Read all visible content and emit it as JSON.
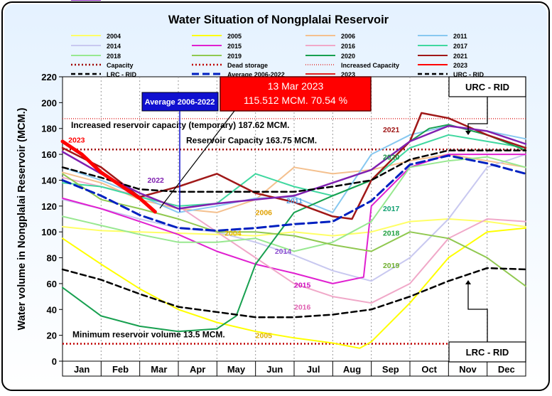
{
  "chart_data": {
    "type": "line",
    "title": "Water Situation of Nongplalai Reservoir",
    "ylabel": "Water volume in Nongplalai Reservoir (MCM.)",
    "xlabel": "",
    "ylim": [
      0,
      220
    ],
    "yticks": [
      0,
      20,
      40,
      60,
      80,
      100,
      120,
      140,
      160,
      180,
      200,
      220
    ],
    "months": [
      "Jan",
      "Feb",
      "Mar",
      "Apr",
      "May",
      "Jun",
      "Jul",
      "Aug",
      "Sep",
      "Oct",
      "Nov",
      "Dec"
    ],
    "grid": "vertical dotted by month",
    "legend_placement": "top",
    "legend": [
      {
        "name": "2004",
        "color": "#ffff66",
        "dash": "solid"
      },
      {
        "name": "2005",
        "color": "#ffff00",
        "dash": "solid"
      },
      {
        "name": "2006",
        "color": "#f4c08e",
        "dash": "solid"
      },
      {
        "name": "2011",
        "color": "#87c8f0",
        "dash": "solid"
      },
      {
        "name": "2014",
        "color": "#c8c8f0",
        "dash": "solid"
      },
      {
        "name": "2015",
        "color": "#e020d0",
        "dash": "solid"
      },
      {
        "name": "2016",
        "color": "#f0a8c8",
        "dash": "solid"
      },
      {
        "name": "2017",
        "color": "#40d8a0",
        "dash": "solid"
      },
      {
        "name": "2018",
        "color": "#98e890",
        "dash": "solid"
      },
      {
        "name": "2019",
        "color": "#90c850",
        "dash": "solid"
      },
      {
        "name": "2020",
        "color": "#18a050",
        "dash": "solid"
      },
      {
        "name": "2021",
        "color": "#a01818",
        "dash": "solid"
      },
      {
        "name": "Capacity",
        "color": "#a00000",
        "dash": "dot"
      },
      {
        "name": "Dead storage",
        "color": "#c00000",
        "dash": "dot"
      },
      {
        "name": "Increased Capacity",
        "color": "#e03030",
        "dash": "finedot"
      },
      {
        "name": "2023",
        "color": "#ff0000",
        "dash": "solid"
      },
      {
        "name": "LRC - RID",
        "color": "#000000",
        "dash": "dash"
      },
      {
        "name": "Average 2006-2022",
        "color": "#0020c0",
        "dash": "longdash"
      },
      {
        "name": "2023",
        "color": "#e02020",
        "dash": "solid"
      },
      {
        "name": "URC - RID",
        "color": "#000000",
        "dash": "dash"
      },
      {
        "name": "2023",
        "color": "#8020b0",
        "dash": "solid"
      }
    ],
    "reference_lines": [
      {
        "label": "Increased reservoir capacity (temporary) 187.62 MCM.",
        "value": 187.62,
        "color": "#e03030"
      },
      {
        "label": "Reservoir Capacity 163.75 MCM.",
        "value": 163.75,
        "color": "#a00000"
      },
      {
        "label": "Minimum reservoir volume 13.5 MCM.",
        "value": 13.5,
        "color": "#c00000"
      }
    ],
    "series": [
      {
        "name": "2004",
        "color": "#ffff66",
        "width": 2,
        "x": [
          0,
          1,
          2,
          3,
          4,
          5,
          6,
          7,
          8,
          9,
          10,
          11,
          12
        ],
        "y": [
          104,
          101,
          100,
          99,
          98,
          97,
          100,
          97,
          100,
          108,
          110,
          108,
          104
        ],
        "label": "2004",
        "lx": 4.2,
        "ly": 97,
        "lc": "#e0b000"
      },
      {
        "name": "2005",
        "color": "#ffff00",
        "width": 2,
        "x": [
          0,
          1,
          2,
          3,
          4,
          5,
          6,
          7,
          7.7,
          8,
          9,
          10,
          11,
          12
        ],
        "y": [
          95,
          75,
          56,
          40,
          30,
          23,
          18,
          14,
          10,
          15,
          45,
          80,
          100,
          103
        ],
        "label": "2005",
        "lx": 5.0,
        "ly": 18,
        "lc": "#e0b000"
      },
      {
        "name": "2006",
        "color": "#f4c08e",
        "width": 2,
        "x": [
          0,
          1,
          2,
          3,
          4,
          5,
          6,
          7,
          8,
          9,
          10,
          11,
          12
        ],
        "y": [
          146,
          138,
          125,
          118,
          115,
          125,
          150,
          145,
          148,
          155,
          160,
          155,
          150
        ],
        "label": "2006",
        "lx": 5.0,
        "ly": 113,
        "lc": "#e0a000"
      },
      {
        "name": "2011",
        "color": "#87c8f0",
        "width": 2,
        "x": [
          0,
          1,
          2,
          3,
          4,
          5,
          6,
          7,
          8,
          9,
          10,
          11,
          12
        ],
        "y": [
          150,
          140,
          128,
          115,
          120,
          126,
          127,
          115,
          160,
          175,
          182,
          178,
          172
        ],
        "label": "2011",
        "lx": 5.8,
        "ly": 122,
        "lc": "#50a0e0"
      },
      {
        "name": "2014",
        "color": "#c8c8f0",
        "width": 2,
        "x": [
          0,
          1,
          2,
          3,
          4,
          5,
          6,
          7,
          8,
          9,
          10,
          11,
          12
        ],
        "y": [
          125,
          118,
          110,
          103,
          100,
          92,
          82,
          70,
          62,
          80,
          110,
          150,
          160
        ],
        "label": "2014",
        "lx": 5.5,
        "ly": 83,
        "lc": "#9050d0"
      },
      {
        "name": "2015",
        "color": "#e020d0",
        "width": 2,
        "x": [
          0,
          1,
          2,
          3,
          4,
          5,
          6,
          7,
          7.8,
          8,
          9,
          10,
          11,
          12
        ],
        "y": [
          126,
          118,
          108,
          98,
          85,
          75,
          68,
          60,
          65,
          120,
          150,
          160,
          160,
          160
        ],
        "label": "2015",
        "lx": 6.0,
        "ly": 57,
        "lc": "#d010c0"
      },
      {
        "name": "2016",
        "color": "#f0a8c8",
        "width": 2,
        "x": [
          0,
          1,
          2,
          3,
          4,
          5,
          6,
          7,
          8,
          9,
          10,
          11,
          12
        ],
        "y": [
          142,
          135,
          128,
          120,
          100,
          80,
          60,
          50,
          45,
          60,
          95,
          110,
          108
        ],
        "label": "2016",
        "lx": 6.0,
        "ly": 40,
        "lc": "#e060b0"
      },
      {
        "name": "2017",
        "color": "#40d8a0",
        "width": 2,
        "x": [
          0,
          1,
          2,
          3,
          4,
          5,
          6,
          7,
          8,
          9,
          10,
          11,
          12
        ],
        "y": [
          138,
          135,
          127,
          120,
          122,
          145,
          135,
          128,
          140,
          165,
          175,
          170,
          165
        ],
        "label": "2017",
        "lx": 8.3,
        "ly": 116,
        "lc": "#10a070"
      },
      {
        "name": "2018",
        "color": "#98e890",
        "width": 2,
        "x": [
          0,
          1,
          2,
          3,
          4,
          5,
          6,
          7,
          8,
          9,
          10,
          11,
          12
        ],
        "y": [
          112,
          105,
          98,
          92,
          92,
          95,
          85,
          92,
          108,
          150,
          155,
          158,
          150
        ],
        "label": "2018",
        "lx": 8.3,
        "ly": 97,
        "lc": "#20a040"
      },
      {
        "name": "2019",
        "color": "#90c850",
        "width": 2,
        "x": [
          0,
          1,
          2,
          3,
          4,
          5,
          6,
          7,
          8,
          9,
          10,
          11,
          12
        ],
        "y": [
          145,
          125,
          118,
          110,
          100,
          100,
          97,
          90,
          85,
          100,
          95,
          80,
          58
        ],
        "label": "2019",
        "lx": 8.3,
        "ly": 72,
        "lc": "#70b030"
      },
      {
        "name": "2020",
        "color": "#18a050",
        "width": 2,
        "x": [
          0,
          1,
          2,
          3,
          4,
          4.5,
          5,
          6,
          7,
          8,
          9,
          9.5,
          10,
          11,
          12
        ],
        "y": [
          57,
          35,
          27,
          23,
          25,
          35,
          75,
          115,
          128,
          140,
          170,
          180,
          183,
          175,
          163
        ],
        "label": "2020",
        "lx": 8.3,
        "ly": 156,
        "lc": "#109040"
      },
      {
        "name": "2021",
        "color": "#a01818",
        "width": 2.5,
        "x": [
          0,
          1,
          2,
          3,
          4,
          5,
          6,
          7,
          7.5,
          8,
          9,
          9.3,
          10,
          11,
          12
        ],
        "y": [
          165,
          150,
          127,
          135,
          145,
          130,
          123,
          112,
          110,
          140,
          170,
          192,
          188,
          175,
          165
        ],
        "label": "2021",
        "lx": 8.3,
        "ly": 177,
        "lc": "#a01818"
      },
      {
        "name": "2022",
        "color": "#8020b0",
        "width": 2.5,
        "x": [
          0,
          1,
          2,
          3,
          4,
          5,
          6,
          7,
          8,
          9,
          10,
          11,
          12
        ],
        "y": [
          162,
          145,
          130,
          118,
          122,
          125,
          128,
          138,
          148,
          170,
          182,
          178,
          168
        ],
        "label": "2022",
        "lx": 2.2,
        "ly": 138,
        "lc": "#8020b0"
      },
      {
        "name": "Average 2006-2022",
        "color": "#0020c0",
        "width": 3,
        "dash": "12,6",
        "x": [
          0,
          1,
          2,
          3,
          4,
          5,
          6,
          7,
          8,
          9,
          10,
          11,
          12
        ],
        "y": [
          140,
          128,
          113,
          103,
          101,
          103,
          106,
          108,
          124,
          152,
          159,
          153,
          145
        ]
      },
      {
        "name": "LRC - RID",
        "color": "#000000",
        "width": 2.5,
        "dash": "8,5",
        "x": [
          0,
          1,
          2,
          3,
          4,
          5,
          6,
          7,
          8,
          9,
          10,
          11,
          12
        ],
        "y": [
          71,
          63,
          52,
          42,
          38,
          34,
          34,
          36,
          40,
          50,
          62,
          72,
          71
        ]
      },
      {
        "name": "URC - RID",
        "color": "#000000",
        "width": 2.5,
        "dash": "8,5",
        "x": [
          0,
          1,
          2,
          3,
          4,
          5,
          6,
          7,
          8,
          9,
          10,
          11,
          12
        ],
        "y": [
          150,
          142,
          133,
          131,
          131,
          131,
          131,
          135,
          140,
          156,
          163,
          163,
          163
        ]
      },
      {
        "name": "2023",
        "color": "#ff0000",
        "width": 5,
        "x": [
          0,
          0.5,
          1,
          1.5,
          2,
          2.4
        ],
        "y": [
          170,
          160,
          146,
          136,
          126,
          115.5
        ],
        "label": "2023",
        "lx": 0.15,
        "ly": 169,
        "lc": "#ff0000"
      }
    ],
    "annotations": [
      {
        "text": "13 Mar 2023",
        "text2": "115.512 MCM. 70.54 %",
        "style": "red-box"
      },
      {
        "text": "Average 2006-2022",
        "style": "blue-box"
      },
      {
        "text": "URC - RID",
        "style": "white-box-top"
      },
      {
        "text": "LRC - RID",
        "style": "white-box-bottom"
      }
    ]
  }
}
